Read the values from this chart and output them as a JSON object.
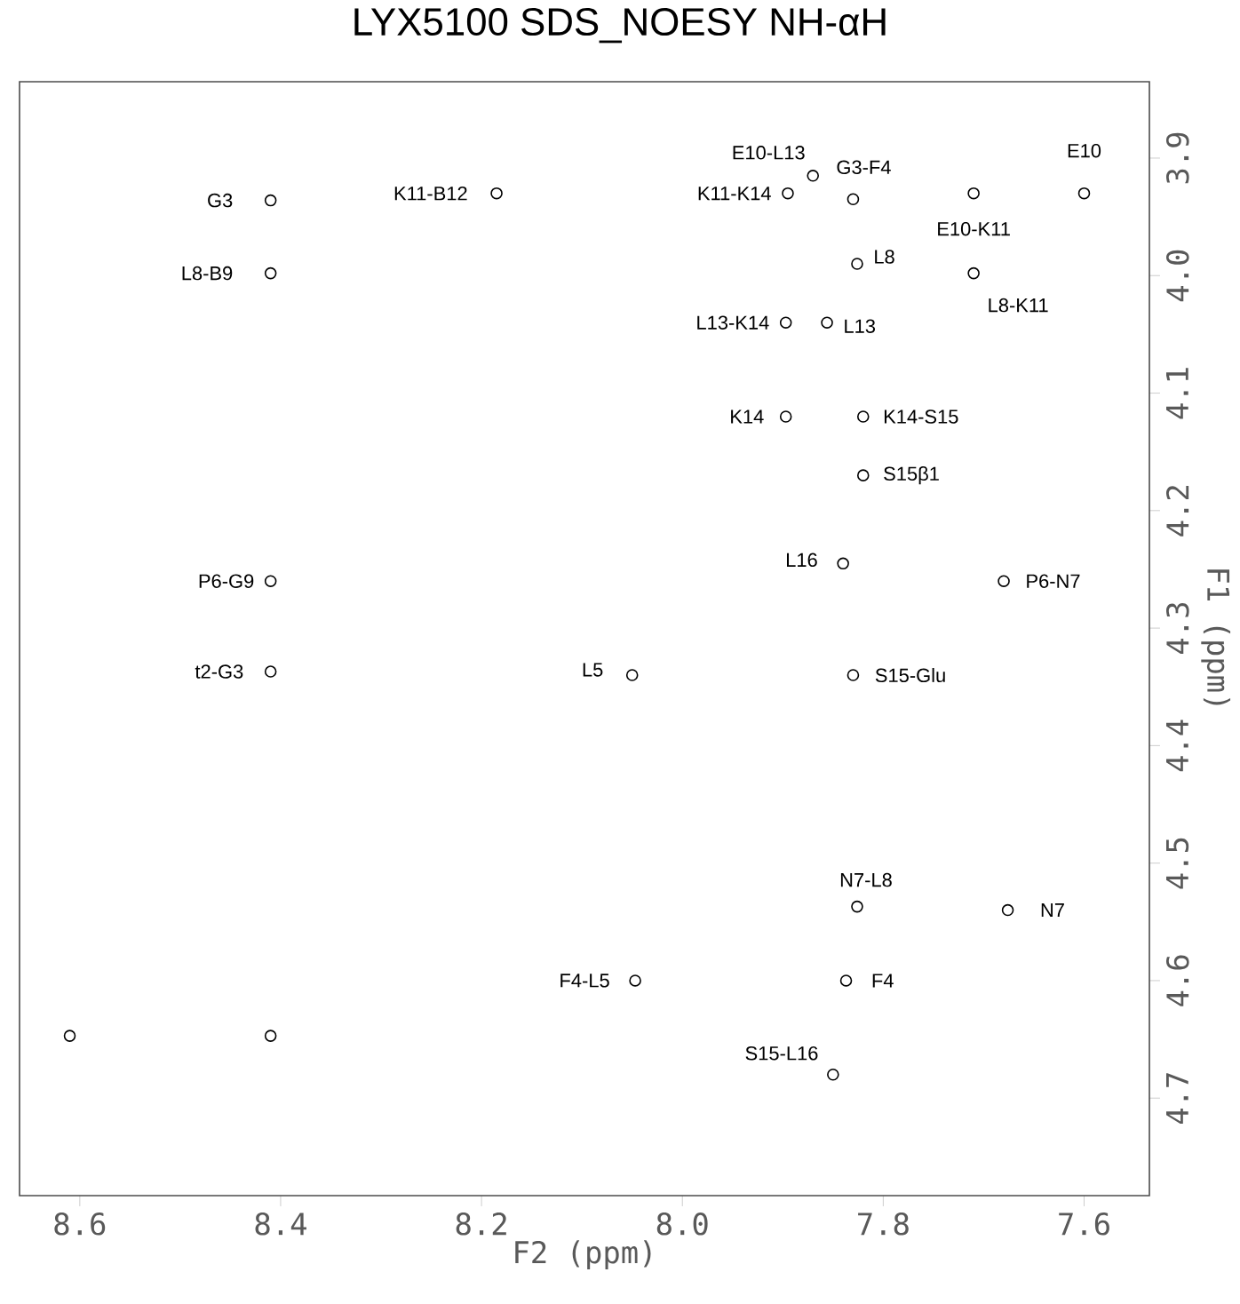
{
  "chart_data": {
    "type": "scatter",
    "title": "LYX5100 SDS_NOESY NH-αH",
    "xlabel": "F2 (ppm)",
    "ylabel": "F1 (ppm)",
    "xlim": [
      8.66,
      7.535
    ],
    "ylim": [
      4.783,
      3.835
    ],
    "xticks": [
      8.6,
      8.4,
      8.2,
      {
        "value": 8.0,
        "label": "8.0"
      },
      7.8,
      7.6
    ],
    "yticks": [
      3.9,
      {
        "value": 4.0,
        "label": "4.0"
      },
      4.1,
      4.2,
      4.3,
      4.4,
      4.5,
      4.6,
      4.7
    ],
    "marker": "circle",
    "series": [
      {
        "color": "#000000",
        "x": [
          8.41,
          8.41,
          8.185,
          7.895,
          7.87,
          7.83,
          7.71,
          7.6,
          7.826,
          7.71,
          7.897,
          7.856,
          7.897,
          7.82,
          7.82,
          8.41,
          7.84,
          7.68,
          8.41,
          8.05,
          7.83,
          7.826,
          7.676,
          8.047,
          7.837,
          7.85,
          8.61,
          8.41
        ],
        "values": [
          3.936,
          3.998,
          3.93,
          3.93,
          3.915,
          3.935,
          3.93,
          3.93,
          3.99,
          3.998,
          4.04,
          4.04,
          4.12,
          4.12,
          4.17,
          4.26,
          4.245,
          4.26,
          4.337,
          4.34,
          4.34,
          4.537,
          4.54,
          4.6,
          4.6,
          4.68,
          4.647,
          4.647
        ]
      }
    ],
    "annotations": [
      {
        "text": "G3",
        "x": 8.41,
        "y": 3.936
      },
      {
        "text": "L8-B9",
        "x": 8.41,
        "y": 3.998
      },
      {
        "text": "K11-B12",
        "x": 8.185,
        "y": 3.93
      },
      {
        "text": "K11-K14",
        "x": 7.895,
        "y": 3.93
      },
      {
        "text": "E10-L13",
        "x": 7.87,
        "y": 3.915
      },
      {
        "text": "G3-F4",
        "x": 7.83,
        "y": 3.935
      },
      {
        "text": "E10-K11",
        "x": 7.71,
        "y": 3.93
      },
      {
        "text": "E10",
        "x": 7.6,
        "y": 3.93
      },
      {
        "text": "L8",
        "x": 7.826,
        "y": 3.99
      },
      {
        "text": "L8-K11",
        "x": 7.71,
        "y": 3.998
      },
      {
        "text": "L13-K14",
        "x": 7.897,
        "y": 4.04
      },
      {
        "text": "L13",
        "x": 7.856,
        "y": 4.04
      },
      {
        "text": "K14",
        "x": 7.897,
        "y": 4.12
      },
      {
        "text": "K14-S15",
        "x": 7.82,
        "y": 4.12
      },
      {
        "text": "S15β1",
        "x": 7.82,
        "y": 4.17
      },
      {
        "text": "P6-G9",
        "x": 8.41,
        "y": 4.26
      },
      {
        "text": "L16",
        "x": 7.84,
        "y": 4.245
      },
      {
        "text": "P6-N7",
        "x": 7.68,
        "y": 4.26
      },
      {
        "text": "t2-G3",
        "x": 8.41,
        "y": 4.337
      },
      {
        "text": "L5",
        "x": 8.05,
        "y": 4.34
      },
      {
        "text": "S15-Glu",
        "x": 7.83,
        "y": 4.34
      },
      {
        "text": "N7-L8",
        "x": 7.826,
        "y": 4.537
      },
      {
        "text": "N7",
        "x": 7.676,
        "y": 4.54
      },
      {
        "text": "F4-L5",
        "x": 8.047,
        "y": 4.6
      },
      {
        "text": "F4",
        "x": 7.837,
        "y": 4.6
      },
      {
        "text": "S15-L16",
        "x": 7.85,
        "y": 4.68
      }
    ]
  }
}
